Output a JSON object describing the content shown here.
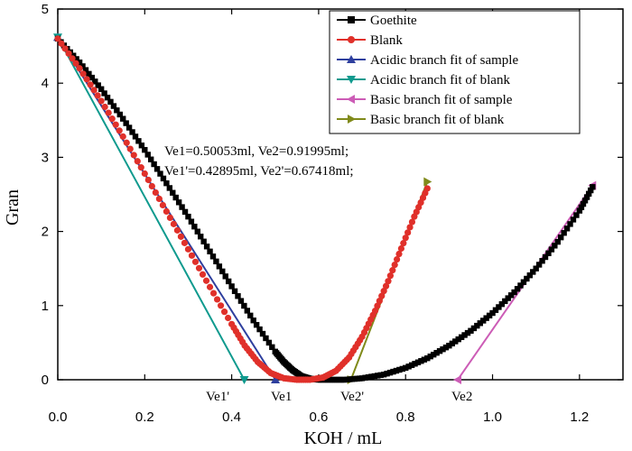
{
  "chart_data": {
    "type": "scatter",
    "title": "",
    "xlabel": "KOH / mL",
    "ylabel": "Gran",
    "xlim": [
      0.0,
      1.3
    ],
    "ylim": [
      0.0,
      5.0
    ],
    "x_ticks": [
      0.0,
      0.2,
      0.4,
      0.6,
      0.8,
      1.0,
      1.2
    ],
    "x_tick_labels": [
      "0.0",
      "0.2",
      "0.4",
      "0.6",
      "0.8",
      "1.0",
      "1.2"
    ],
    "y_ticks": [
      0,
      1,
      2,
      3,
      4,
      5
    ],
    "y_tick_labels": [
      "0",
      "1",
      "2",
      "3",
      "4",
      "5"
    ],
    "legend_position": "top-right",
    "series": [
      {
        "name": "Goethite",
        "marker": "square",
        "color": "#000000",
        "x": [
          0.0,
          0.05,
          0.1,
          0.15,
          0.2,
          0.25,
          0.3,
          0.35,
          0.4,
          0.45,
          0.5,
          0.52,
          0.54,
          0.56,
          0.58,
          0.6,
          0.63,
          0.66,
          0.7,
          0.75,
          0.8,
          0.85,
          0.9,
          0.95,
          1.0,
          1.05,
          1.1,
          1.15,
          1.2,
          1.23
        ],
        "y": [
          4.6,
          4.28,
          3.92,
          3.52,
          3.1,
          2.65,
          2.2,
          1.73,
          1.26,
          0.8,
          0.38,
          0.24,
          0.13,
          0.05,
          0.015,
          0.0,
          0.0,
          0.0,
          0.02,
          0.07,
          0.16,
          0.29,
          0.46,
          0.66,
          0.9,
          1.18,
          1.5,
          1.86,
          2.28,
          2.6
        ]
      },
      {
        "name": "Blank",
        "marker": "circle",
        "color": "#e0302a",
        "x": [
          0.0,
          0.05,
          0.1,
          0.15,
          0.2,
          0.25,
          0.3,
          0.35,
          0.4,
          0.43,
          0.46,
          0.49,
          0.52,
          0.55,
          0.58,
          0.61,
          0.64,
          0.67,
          0.7,
          0.73,
          0.76,
          0.79,
          0.82,
          0.85
        ],
        "y": [
          4.6,
          4.2,
          3.76,
          3.28,
          2.78,
          2.27,
          1.76,
          1.25,
          0.75,
          0.46,
          0.24,
          0.09,
          0.02,
          0.0,
          0.0,
          0.03,
          0.12,
          0.3,
          0.58,
          0.93,
          1.33,
          1.77,
          2.2,
          2.58
        ]
      }
    ],
    "fit_lines": [
      {
        "name": "Acidic branch fit of sample",
        "marker": "triangle-up",
        "color": "#2e3f9e",
        "x": [
          0.0,
          0.50053
        ],
        "y": [
          4.62,
          0.0
        ]
      },
      {
        "name": "Acidic branch fit of blank",
        "marker": "triangle-down",
        "color": "#0f9a8e",
        "x": [
          0.0,
          0.42895
        ],
        "y": [
          4.62,
          0.0
        ]
      },
      {
        "name": "Basic branch fit of sample",
        "marker": "triangle-left",
        "color": "#cc5cb6",
        "x": [
          0.91995,
          1.23
        ],
        "y": [
          0.0,
          2.62
        ]
      },
      {
        "name": "Basic branch fit of blank",
        "marker": "triangle-right",
        "color": "#808a1a",
        "x": [
          0.67418,
          0.85
        ],
        "y": [
          0.0,
          2.67
        ]
      }
    ],
    "annotations": [
      "Ve1=0.50053ml,  Ve2=0.91995ml;",
      "Ve1'=0.42895ml, Ve2'=0.67418ml;"
    ],
    "equivalence_markers": [
      {
        "label": "Ve1'",
        "x": 0.42895
      },
      {
        "label": "Ve1",
        "x": 0.50053
      },
      {
        "label": "Ve2'",
        "x": 0.67418
      },
      {
        "label": "Ve2",
        "x": 0.91995
      }
    ]
  }
}
